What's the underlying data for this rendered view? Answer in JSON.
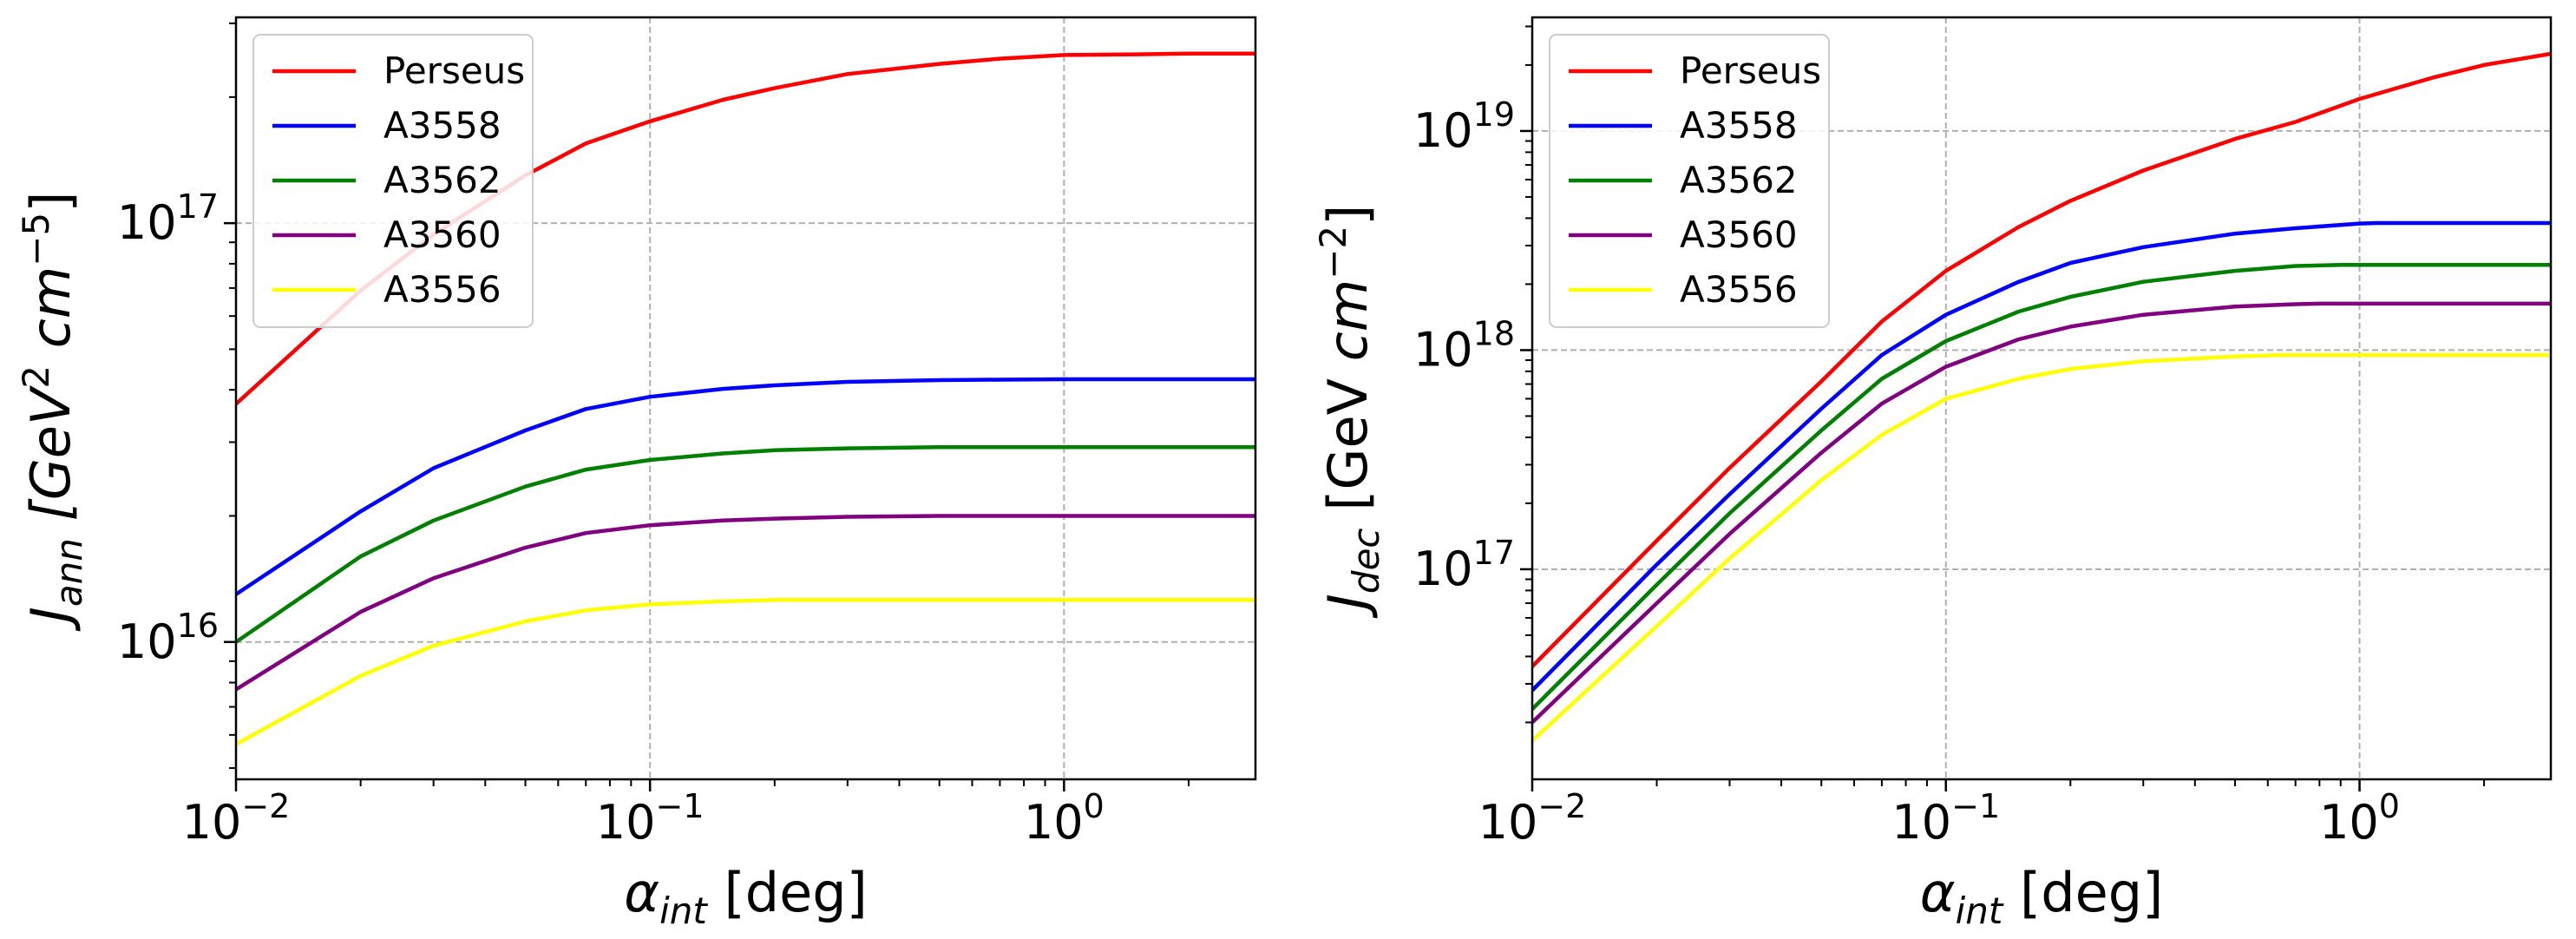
{
  "chart_data": [
    {
      "type": "line",
      "xscale": "log",
      "yscale": "log",
      "xlabel_main": "α",
      "xlabel_sub": "int",
      "xlabel_unit": " [deg]",
      "ylabel_main": "J",
      "ylabel_sub": "ann",
      "ylabel_unit_pre": " [GeV",
      "ylabel_unit_exp1": "2",
      "ylabel_unit_mid": " cm",
      "ylabel_unit_exp2": "−5",
      "ylabel_unit_post": "]",
      "xlim": [
        0.01,
        2.9
      ],
      "ylim": [
        4700000000000000.0,
        3.1e+17
      ],
      "xticks": [
        {
          "value": 0.01,
          "base": "10",
          "exp": "−2"
        },
        {
          "value": 0.1,
          "base": "10",
          "exp": "−1"
        },
        {
          "value": 1,
          "base": "10",
          "exp": "0"
        }
      ],
      "yticks": [
        {
          "value": 1e+16,
          "base": "10",
          "exp": "16"
        },
        {
          "value": 1e+17,
          "base": "10",
          "exp": "17"
        }
      ],
      "grid": true,
      "legend_position": "top-left",
      "series": [
        {
          "name": "Perseus",
          "color": "#ff0000",
          "x": [
            0.01,
            0.02,
            0.03,
            0.05,
            0.07,
            0.1,
            0.15,
            0.2,
            0.3,
            0.5,
            0.7,
            1.0,
            1.5,
            2.0,
            2.9
          ],
          "y": [
            3.7e+16,
            6.9e+16,
            9.4e+16,
            1.3e+17,
            1.55e+17,
            1.75e+17,
            1.97e+17,
            2.1e+17,
            2.27e+17,
            2.4e+17,
            2.47e+17,
            2.52e+17,
            2.53e+17,
            2.54e+17,
            2.54e+17
          ]
        },
        {
          "name": "A3558",
          "color": "#0000ff",
          "x": [
            0.01,
            0.02,
            0.03,
            0.05,
            0.07,
            0.1,
            0.15,
            0.2,
            0.3,
            0.5,
            0.7,
            1.0,
            1.5,
            2.0,
            2.9
          ],
          "y": [
            1.3e+16,
            2.05e+16,
            2.6e+16,
            3.2e+16,
            3.6e+16,
            3.85e+16,
            4.02e+16,
            4.1e+16,
            4.18e+16,
            4.22e+16,
            4.23e+16,
            4.24e+16,
            4.24e+16,
            4.24e+16,
            4.24e+16
          ]
        },
        {
          "name": "A3562",
          "color": "#008000",
          "x": [
            0.01,
            0.02,
            0.03,
            0.05,
            0.07,
            0.1,
            0.15,
            0.2,
            0.3,
            0.5,
            0.7,
            1.0,
            1.5,
            2.0,
            2.9
          ],
          "y": [
            1e+16,
            1.6e+16,
            1.95e+16,
            2.35e+16,
            2.58e+16,
            2.72e+16,
            2.82e+16,
            2.87e+16,
            2.9e+16,
            2.92e+16,
            2.92e+16,
            2.92e+16,
            2.92e+16,
            2.92e+16,
            2.92e+16
          ]
        },
        {
          "name": "A3560",
          "color": "#800080",
          "x": [
            0.01,
            0.02,
            0.03,
            0.05,
            0.07,
            0.1,
            0.15,
            0.2,
            0.3,
            0.5,
            0.7,
            1.0,
            1.5,
            2.0,
            2.9
          ],
          "y": [
            7700000000000000.0,
            1.18e+16,
            1.42e+16,
            1.68e+16,
            1.82e+16,
            1.9e+16,
            1.95e+16,
            1.97e+16,
            1.99e+16,
            2e+16,
            2e+16,
            2e+16,
            2e+16,
            2e+16,
            2e+16
          ]
        },
        {
          "name": "A3556",
          "color": "#ffff00",
          "x": [
            0.01,
            0.02,
            0.03,
            0.05,
            0.07,
            0.1,
            0.15,
            0.2,
            0.3,
            0.5,
            0.7,
            1.0,
            1.5,
            2.0,
            2.9
          ],
          "y": [
            5700000000000000.0,
            8300000000000000.0,
            9800000000000000.0,
            1.12e+16,
            1.19e+16,
            1.23e+16,
            1.25e+16,
            1.26e+16,
            1.26e+16,
            1.26e+16,
            1.26e+16,
            1.26e+16,
            1.26e+16,
            1.26e+16,
            1.26e+16
          ]
        }
      ]
    },
    {
      "type": "line",
      "xscale": "log",
      "yscale": "log",
      "xlabel_main": "α",
      "xlabel_sub": "int",
      "xlabel_unit": " [deg]",
      "ylabel_main": "J",
      "ylabel_sub": "dec",
      "ylabel_unit_pre": " [GeV",
      "ylabel_unit_exp1": "",
      "ylabel_unit_mid": " cm",
      "ylabel_unit_exp2": "−2",
      "ylabel_unit_post": "]",
      "xlim": [
        0.01,
        2.9
      ],
      "ylim": [
        1.1e+16,
        3.3e+19
      ],
      "xticks": [
        {
          "value": 0.01,
          "base": "10",
          "exp": "−2"
        },
        {
          "value": 0.1,
          "base": "10",
          "exp": "−1"
        },
        {
          "value": 1,
          "base": "10",
          "exp": "0"
        }
      ],
      "yticks": [
        {
          "value": 1e+17,
          "base": "10",
          "exp": "17"
        },
        {
          "value": 1e+18,
          "base": "10",
          "exp": "18"
        },
        {
          "value": 1e+19,
          "base": "10",
          "exp": "19"
        }
      ],
      "grid": true,
      "legend_position": "top-left",
      "series": [
        {
          "name": "Perseus",
          "color": "#ff0000",
          "x": [
            0.01,
            0.02,
            0.03,
            0.05,
            0.07,
            0.1,
            0.15,
            0.2,
            0.3,
            0.5,
            0.7,
            1.0,
            1.5,
            2.0,
            2.9
          ],
          "y": [
            3.6e+16,
            1.35e+17,
            2.9e+17,
            7.2e+17,
            1.35e+18,
            2.3e+18,
            3.65e+18,
            4.8e+18,
            6.6e+18,
            9.2e+18,
            1.1e+19,
            1.4e+19,
            1.75e+19,
            2e+19,
            2.25e+19
          ]
        },
        {
          "name": "A3558",
          "color": "#0000ff",
          "x": [
            0.01,
            0.02,
            0.03,
            0.05,
            0.07,
            0.1,
            0.15,
            0.2,
            0.3,
            0.5,
            0.7,
            1.0,
            1.1,
            2.0,
            2.9
          ],
          "y": [
            2.8e+16,
            1.05e+17,
            2.2e+17,
            5.4e+17,
            9.5e+17,
            1.45e+18,
            2.05e+18,
            2.5e+18,
            2.95e+18,
            3.4e+18,
            3.6e+18,
            3.78e+18,
            3.8e+18,
            3.8e+18,
            3.8e+18
          ]
        },
        {
          "name": "A3562",
          "color": "#008000",
          "x": [
            0.01,
            0.02,
            0.03,
            0.05,
            0.07,
            0.1,
            0.15,
            0.2,
            0.3,
            0.5,
            0.7,
            0.9,
            1.0,
            2.0,
            2.9
          ],
          "y": [
            2.3e+16,
            8.5e+16,
            1.8e+17,
            4.3e+17,
            7.4e+17,
            1.1e+18,
            1.5e+18,
            1.75e+18,
            2.05e+18,
            2.3e+18,
            2.42e+18,
            2.45e+18,
            2.45e+18,
            2.45e+18,
            2.45e+18
          ]
        },
        {
          "name": "A3560",
          "color": "#800080",
          "x": [
            0.01,
            0.02,
            0.03,
            0.05,
            0.07,
            0.1,
            0.15,
            0.2,
            0.3,
            0.5,
            0.7,
            0.8,
            1.0,
            2.0,
            2.9
          ],
          "y": [
            2e+16,
            7e+16,
            1.45e+17,
            3.4e+17,
            5.7e+17,
            8.4e+17,
            1.12e+18,
            1.28e+18,
            1.45e+18,
            1.58e+18,
            1.62e+18,
            1.63e+18,
            1.63e+18,
            1.63e+18,
            1.63e+18
          ]
        },
        {
          "name": "A3556",
          "color": "#ffff00",
          "x": [
            0.01,
            0.02,
            0.03,
            0.05,
            0.07,
            0.1,
            0.15,
            0.2,
            0.3,
            0.5,
            0.65,
            0.7,
            1.0,
            2.0,
            2.9
          ],
          "y": [
            1.65e+16,
            5.5e+16,
            1.12e+17,
            2.55e+17,
            4.1e+17,
            6e+17,
            7.4e+17,
            8.2e+17,
            8.9e+17,
            9.35e+17,
            9.5e+17,
            9.5e+17,
            9.5e+17,
            9.5e+17,
            9.5e+17
          ]
        }
      ]
    }
  ]
}
